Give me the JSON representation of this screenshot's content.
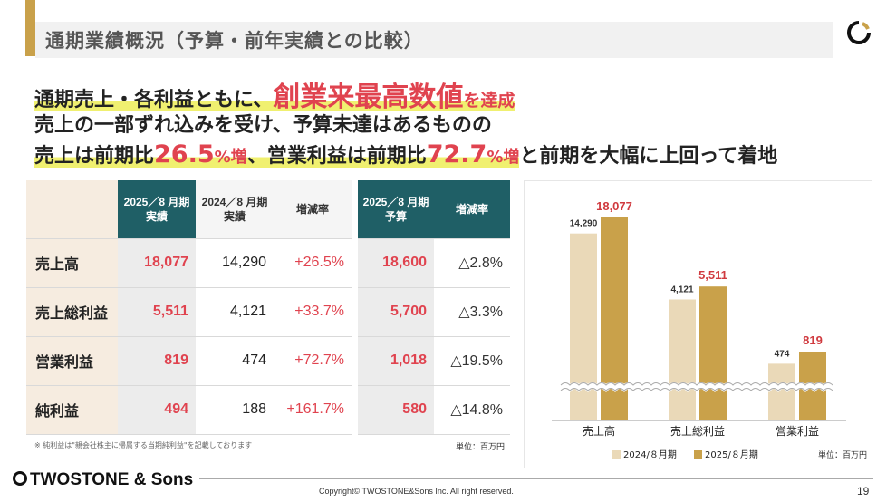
{
  "title": "通期業績概況（予算・前年実績との比較）",
  "headline": {
    "l1_a": "通期売上・各利益ともに、",
    "l1_b": "創業来最高数値",
    "l1_c": "を達成",
    "l2": "売上の一部ずれ込みを受け、予算未達はあるものの",
    "l3_a": "売上は前期比",
    "l3_b": "26.5",
    "l3_c": "%増",
    "l3_d": "、営業利益は前期比",
    "l3_e": "72.7",
    "l3_f": "%増",
    "l3_g": "と前期を大幅に上回って着地"
  },
  "table": {
    "headers": {
      "cur": [
        "2025／8 月期",
        "実績"
      ],
      "prev": [
        "2024／8 月期",
        "実績"
      ],
      "rate": "増減率",
      "budget": [
        "2025／8 月期",
        "予算"
      ],
      "diff": "増減率"
    },
    "rows": [
      {
        "label": "売上高",
        "cur": "18,077",
        "prev": "14,290",
        "rate": "+26.5%",
        "budget": "18,600",
        "diff": "△2.8%"
      },
      {
        "label": "売上総利益",
        "cur": "5,511",
        "prev": "4,121",
        "rate": "+33.7%",
        "budget": "5,700",
        "diff": "△3.3%"
      },
      {
        "label": "営業利益",
        "cur": "819",
        "prev": "474",
        "rate": "+72.7%",
        "budget": "1,018",
        "diff": "△19.5%"
      },
      {
        "label": "純利益",
        "cur": "494",
        "prev": "188",
        "rate": "+161.7%",
        "budget": "580",
        "diff": "△14.8%"
      }
    ],
    "note": "※ 純利益は\"親会社株主に帰属する当期純利益\"を記載しております",
    "unit": "単位：百万円"
  },
  "chart_data": {
    "type": "bar",
    "categories": [
      "売上高",
      "売上総利益",
      "営業利益"
    ],
    "series": [
      {
        "name": "2024/８月期",
        "values": [
          14290,
          4121,
          474
        ],
        "labels": [
          "14,290",
          "4,121",
          "474"
        ]
      },
      {
        "name": "2025/８月期",
        "values": [
          18077,
          5511,
          819
        ],
        "labels": [
          "18,077",
          "5,511",
          "819"
        ]
      }
    ],
    "axis_break": true,
    "legend_position": "bottom",
    "unit": "単位：百万円",
    "colors": {
      "prev": "#ead9b8",
      "cur": "#c9a14a",
      "cur_label": "#d03a3f",
      "prev_label": "#333333"
    }
  },
  "footer": {
    "logo": "TWOSTONE & Sons",
    "copyright": "Copyright© TWOSTONE&Sons Inc. All right reserved.",
    "page": "19"
  }
}
